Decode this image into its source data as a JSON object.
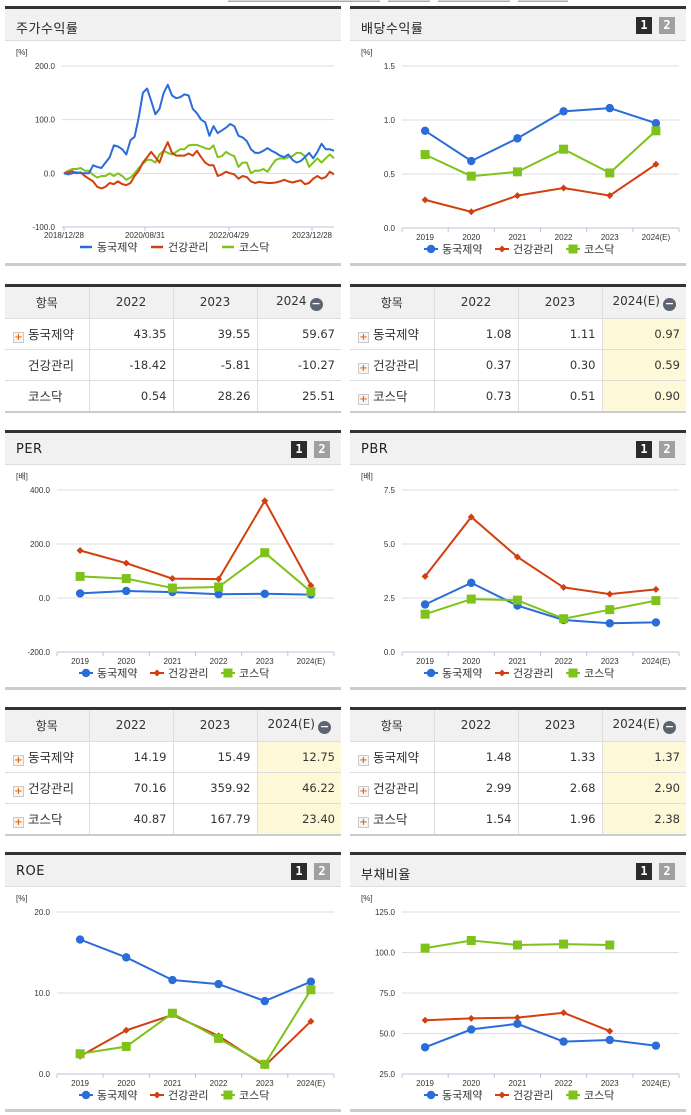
{
  "colors": {
    "dongkuk": "#2a6dd9",
    "health": "#d2400f",
    "kosdaq": "#7fc21c",
    "grid": "#dddddd",
    "estimate_bg": "#fdf8d7"
  },
  "series_names": [
    "동국제약",
    "건강관리",
    "코스닥"
  ],
  "pager": {
    "page1": "1",
    "page2": "2"
  },
  "panels": {
    "stock_return": {
      "title": "주가수익률",
      "unit": "[%]"
    },
    "dividend": {
      "title": "배당수익률",
      "unit": "[%]"
    },
    "per": {
      "title": "PER",
      "unit": "[배]"
    },
    "pbr": {
      "title": "PBR",
      "unit": "[배]"
    },
    "roe": {
      "title": "ROE",
      "unit": "[%]"
    },
    "debt": {
      "title": "부채비율",
      "unit": "[%]"
    }
  },
  "tables": {
    "stock_return": {
      "headers": [
        "항목",
        "2022",
        "2023",
        "2024"
      ],
      "rows": [
        {
          "name": "동국제약",
          "expandable": true,
          "values": [
            "43.35",
            "39.55",
            "59.67"
          ]
        },
        {
          "name": "건강관리",
          "expandable": false,
          "values": [
            "-18.42",
            "-5.81",
            "-10.27"
          ]
        },
        {
          "name": "코스닥",
          "expandable": false,
          "values": [
            "0.54",
            "28.26",
            "25.51"
          ]
        }
      ]
    },
    "dividend": {
      "headers": [
        "항목",
        "2022",
        "2023",
        "2024(E)"
      ],
      "rows": [
        {
          "name": "동국제약",
          "expandable": true,
          "values": [
            "1.08",
            "1.11",
            "0.97"
          ]
        },
        {
          "name": "건강관리",
          "expandable": true,
          "values": [
            "0.37",
            "0.30",
            "0.59"
          ]
        },
        {
          "name": "코스닥",
          "expandable": true,
          "values": [
            "0.73",
            "0.51",
            "0.90"
          ]
        }
      ]
    },
    "per": {
      "headers": [
        "항목",
        "2022",
        "2023",
        "2024(E)"
      ],
      "rows": [
        {
          "name": "동국제약",
          "expandable": true,
          "values": [
            "14.19",
            "15.49",
            "12.75"
          ]
        },
        {
          "name": "건강관리",
          "expandable": true,
          "values": [
            "70.16",
            "359.92",
            "46.22"
          ]
        },
        {
          "name": "코스닥",
          "expandable": true,
          "values": [
            "40.87",
            "167.79",
            "23.40"
          ]
        }
      ]
    },
    "pbr": {
      "headers": [
        "항목",
        "2022",
        "2023",
        "2024(E)"
      ],
      "rows": [
        {
          "name": "동국제약",
          "expandable": true,
          "values": [
            "1.48",
            "1.33",
            "1.37"
          ]
        },
        {
          "name": "건강관리",
          "expandable": true,
          "values": [
            "2.99",
            "2.68",
            "2.90"
          ]
        },
        {
          "name": "코스닥",
          "expandable": true,
          "values": [
            "1.54",
            "1.96",
            "2.38"
          ]
        }
      ]
    }
  },
  "chart_data": [
    {
      "id": "stock_return",
      "type": "line",
      "title": "주가수익률",
      "ylabel": "[%]",
      "ylim": [
        -100,
        200
      ],
      "yticks": [
        "200.0",
        "100.0",
        "0.0",
        "-100.0"
      ],
      "ytick_values": [
        200,
        100,
        0,
        -100
      ],
      "xticks": [
        "2018/12/28",
        "2020/08/31",
        "2022/04/29",
        "2023/12/28"
      ],
      "grid": true,
      "legend_position": "bottom",
      "series": [
        {
          "name": "동국제약",
          "values": [
            0,
            -2,
            0,
            2,
            0,
            0,
            0,
            15,
            12,
            10,
            20,
            30,
            52,
            50,
            45,
            35,
            62,
            68,
            105,
            150,
            158,
            135,
            110,
            120,
            150,
            165,
            145,
            140,
            142,
            147,
            145,
            120,
            112,
            100,
            95,
            70,
            88,
            75,
            80,
            85,
            92,
            88,
            70,
            67,
            60,
            45,
            38,
            38,
            42,
            47,
            42,
            38,
            33,
            30,
            35,
            25,
            20,
            23,
            30,
            38,
            28,
            40,
            55,
            45,
            45,
            42
          ]
        },
        {
          "name": "건강관리",
          "values": [
            0,
            2,
            4,
            0,
            2,
            -5,
            -10,
            -15,
            -25,
            -28,
            -25,
            -18,
            -20,
            -15,
            -20,
            -22,
            -18,
            -5,
            5,
            20,
            30,
            40,
            30,
            20,
            42,
            58,
            38,
            33,
            33,
            33,
            37,
            33,
            42,
            30,
            20,
            15,
            15,
            -5,
            -2,
            3,
            0,
            -2,
            -10,
            -5,
            -7,
            -15,
            -18,
            -16,
            -17,
            -18,
            -18,
            -17,
            -15,
            -12,
            -15,
            -17,
            -15,
            -13,
            -20,
            -18,
            -10,
            -5,
            -10,
            -7,
            3,
            -2
          ]
        },
        {
          "name": "코스닥",
          "values": [
            0,
            5,
            8,
            8,
            10,
            5,
            5,
            -3,
            -8,
            -5,
            -5,
            0,
            -5,
            0,
            -5,
            -12,
            -8,
            0,
            10,
            18,
            25,
            25,
            20,
            35,
            42,
            38,
            35,
            40,
            45,
            45,
            52,
            53,
            53,
            50,
            47,
            45,
            52,
            30,
            32,
            40,
            35,
            32,
            12,
            20,
            20,
            0,
            5,
            5,
            8,
            3,
            15,
            25,
            28,
            27,
            30,
            32,
            38,
            38,
            32,
            12,
            20,
            28,
            20,
            28,
            35,
            28
          ]
        }
      ]
    },
    {
      "id": "dividend",
      "type": "line",
      "title": "배당수익률",
      "ylabel": "[%]",
      "ylim": [
        0,
        1.5
      ],
      "yticks": [
        "1.5",
        "1.0",
        "0.5",
        "0.0"
      ],
      "ytick_values": [
        1.5,
        1.0,
        0.5,
        0.0
      ],
      "categories": [
        "2019",
        "2020",
        "2021",
        "2022",
        "2023",
        "2024(E)"
      ],
      "grid": true,
      "legend_position": "bottom",
      "series": [
        {
          "name": "동국제약",
          "values": [
            0.9,
            0.62,
            0.83,
            1.08,
            1.11,
            0.97
          ]
        },
        {
          "name": "건강관리",
          "values": [
            0.26,
            0.15,
            0.3,
            0.37,
            0.3,
            0.59
          ]
        },
        {
          "name": "코스닥",
          "values": [
            0.68,
            0.48,
            0.52,
            0.73,
            0.51,
            0.9
          ]
        }
      ]
    },
    {
      "id": "per",
      "type": "line",
      "title": "PER",
      "ylabel": "[배]",
      "ylim": [
        -200,
        400
      ],
      "yticks": [
        "400.0",
        "200.0",
        "0.0",
        "-200.0"
      ],
      "ytick_values": [
        400,
        200,
        0,
        -200
      ],
      "categories": [
        "2019",
        "2020",
        "2021",
        "2022",
        "2023",
        "2024(E)"
      ],
      "grid": true,
      "legend_position": "bottom",
      "series": [
        {
          "name": "동국제약",
          "values": [
            17,
            26,
            22,
            14.19,
            15.49,
            12.75
          ]
        },
        {
          "name": "건강관리",
          "values": [
            176,
            129,
            72,
            70.16,
            359.92,
            46.22
          ]
        },
        {
          "name": "코스닥",
          "values": [
            80,
            72,
            37,
            40.87,
            167.79,
            23.4
          ]
        }
      ]
    },
    {
      "id": "pbr",
      "type": "line",
      "title": "PBR",
      "ylabel": "[배]",
      "ylim": [
        0,
        7.5
      ],
      "yticks": [
        "7.5",
        "5.0",
        "2.5",
        "0.0"
      ],
      "ytick_values": [
        7.5,
        5.0,
        2.5,
        0.0
      ],
      "categories": [
        "2019",
        "2020",
        "2021",
        "2022",
        "2023",
        "2024(E)"
      ],
      "grid": true,
      "legend_position": "bottom",
      "series": [
        {
          "name": "동국제약",
          "values": [
            2.2,
            3.2,
            2.15,
            1.48,
            1.33,
            1.37
          ]
        },
        {
          "name": "건강관리",
          "values": [
            3.5,
            6.25,
            4.4,
            2.99,
            2.68,
            2.9
          ]
        },
        {
          "name": "코스닥",
          "values": [
            1.75,
            2.45,
            2.4,
            1.54,
            1.96,
            2.38
          ]
        }
      ]
    },
    {
      "id": "roe",
      "type": "line",
      "title": "ROE",
      "ylabel": "[%]",
      "ylim": [
        0,
        20
      ],
      "yticks": [
        "20.0",
        "10.0",
        "0.0"
      ],
      "ytick_values": [
        20,
        10,
        0
      ],
      "categories": [
        "2019",
        "2020",
        "2021",
        "2022",
        "2023",
        "2024(E)"
      ],
      "grid": true,
      "legend_position": "bottom",
      "series": [
        {
          "name": "동국제약",
          "values": [
            16.6,
            14.4,
            11.6,
            11.1,
            9.0,
            11.4
          ]
        },
        {
          "name": "건강관리",
          "values": [
            2.2,
            5.4,
            7.3,
            4.7,
            1.0,
            6.5
          ]
        },
        {
          "name": "코스닥",
          "values": [
            2.5,
            3.4,
            7.5,
            4.4,
            1.2,
            10.4
          ]
        }
      ]
    },
    {
      "id": "debt",
      "type": "line",
      "title": "부채비율",
      "ylabel": "[%]",
      "ylim": [
        25,
        125
      ],
      "yticks": [
        "125.0",
        "100.0",
        "75.0",
        "50.0",
        "25.0"
      ],
      "ytick_values": [
        125,
        100,
        75,
        50,
        25
      ],
      "categories": [
        "2019",
        "2020",
        "2021",
        "2022",
        "2023",
        "2024(E)"
      ],
      "grid": true,
      "legend_position": "bottom",
      "series": [
        {
          "name": "동국제약",
          "values": [
            41.5,
            52.5,
            56,
            45,
            46,
            42.5
          ]
        },
        {
          "name": "건강관리",
          "values": [
            58.2,
            59.3,
            59.8,
            62.8,
            51.5,
            null
          ]
        },
        {
          "name": "코스닥",
          "values": [
            102.7,
            107.4,
            104.6,
            105.2,
            104.6,
            null
          ]
        }
      ]
    }
  ]
}
